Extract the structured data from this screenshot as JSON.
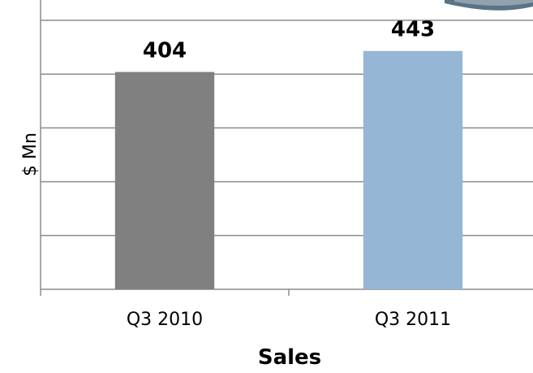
{
  "chart_data": {
    "type": "bar",
    "categories": [
      "Q3 2010",
      "Q3 2011"
    ],
    "values": [
      404,
      443
    ],
    "data_labels": [
      "404",
      "443"
    ],
    "xlabel": "Sales",
    "ylabel": "$ Mn",
    "ylim": [
      0,
      500
    ],
    "grid": true,
    "legend": "none",
    "colors": {
      "bars": [
        "#808080",
        "#95b6d5"
      ],
      "gridline": "#8c8c8c",
      "axis": "#8c8c8c",
      "text": "#000000",
      "corner_decoration": "#5b7384"
    }
  }
}
